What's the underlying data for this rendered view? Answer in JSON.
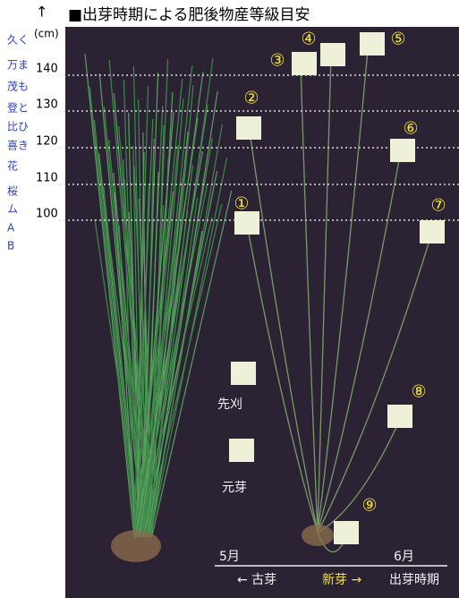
{
  "header": {
    "arrow": "↑",
    "unit": "(cm)",
    "title": "■出芽時期による肥後物産等級目安"
  },
  "scale": [
    "140",
    "130",
    "120",
    "110",
    "100"
  ],
  "grades": [
    "久く",
    "万ま",
    "茂も",
    "登と",
    "比ひ",
    "喜き",
    "花",
    "桜",
    "ム",
    "A",
    "B"
  ],
  "numbers": [
    "①",
    "②",
    "③",
    "④",
    "⑤",
    "⑥",
    "⑦",
    "⑧",
    "⑨"
  ],
  "labels": {
    "sakigari": "先刈",
    "motome": "元芽"
  },
  "timeline": {
    "may": "5月",
    "june": "6月",
    "old": "← 古芽",
    "new": "新芽 →",
    "caption": "出芽時期"
  }
}
